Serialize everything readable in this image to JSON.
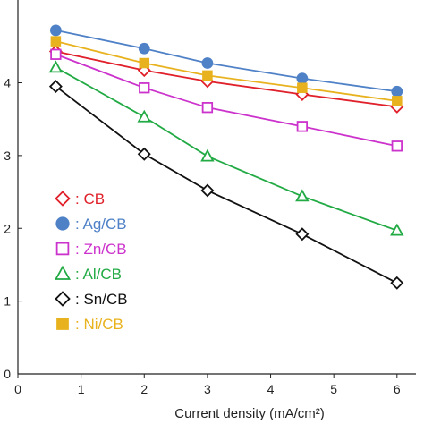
{
  "chart_data": {
    "type": "line",
    "title": "",
    "xlabel": "Current density (mA/cm²)",
    "ylabel": "",
    "xlim": [
      0,
      6.3
    ],
    "ylim": [
      0,
      5.1
    ],
    "xticks": [
      0,
      1,
      2,
      3,
      4,
      5,
      6
    ],
    "yticks": [
      0,
      1,
      2,
      3,
      4
    ],
    "grid": false,
    "legend_position": "bottom-left",
    "x": [
      0.6,
      2,
      3,
      4.5,
      6
    ],
    "series": [
      {
        "name": "CB",
        "marker": "diamond-open",
        "color": "#e0202a",
        "values": [
          4.43,
          4.17,
          4.02,
          3.84,
          3.67
        ]
      },
      {
        "name": "Ag/CB",
        "marker": "circle-filled",
        "color": "#4f81c7",
        "values": [
          4.72,
          4.47,
          4.27,
          4.06,
          3.88
        ]
      },
      {
        "name": "Zn/CB",
        "marker": "square-open",
        "color": "#cc33cc",
        "values": [
          4.39,
          3.93,
          3.66,
          3.4,
          3.13
        ]
      },
      {
        "name": "Al/CB",
        "marker": "triangle-open",
        "color": "#22aa44",
        "values": [
          4.21,
          3.53,
          2.99,
          2.44,
          1.97
        ]
      },
      {
        "name": "Sn/CB",
        "marker": "diamond-open",
        "color": "#111111",
        "values": [
          3.95,
          3.02,
          2.52,
          1.92,
          1.25
        ]
      },
      {
        "name": "Ni/CB",
        "marker": "square-filled",
        "color": "#e8b21e",
        "values": [
          4.57,
          4.27,
          4.1,
          3.93,
          3.75
        ]
      }
    ]
  }
}
